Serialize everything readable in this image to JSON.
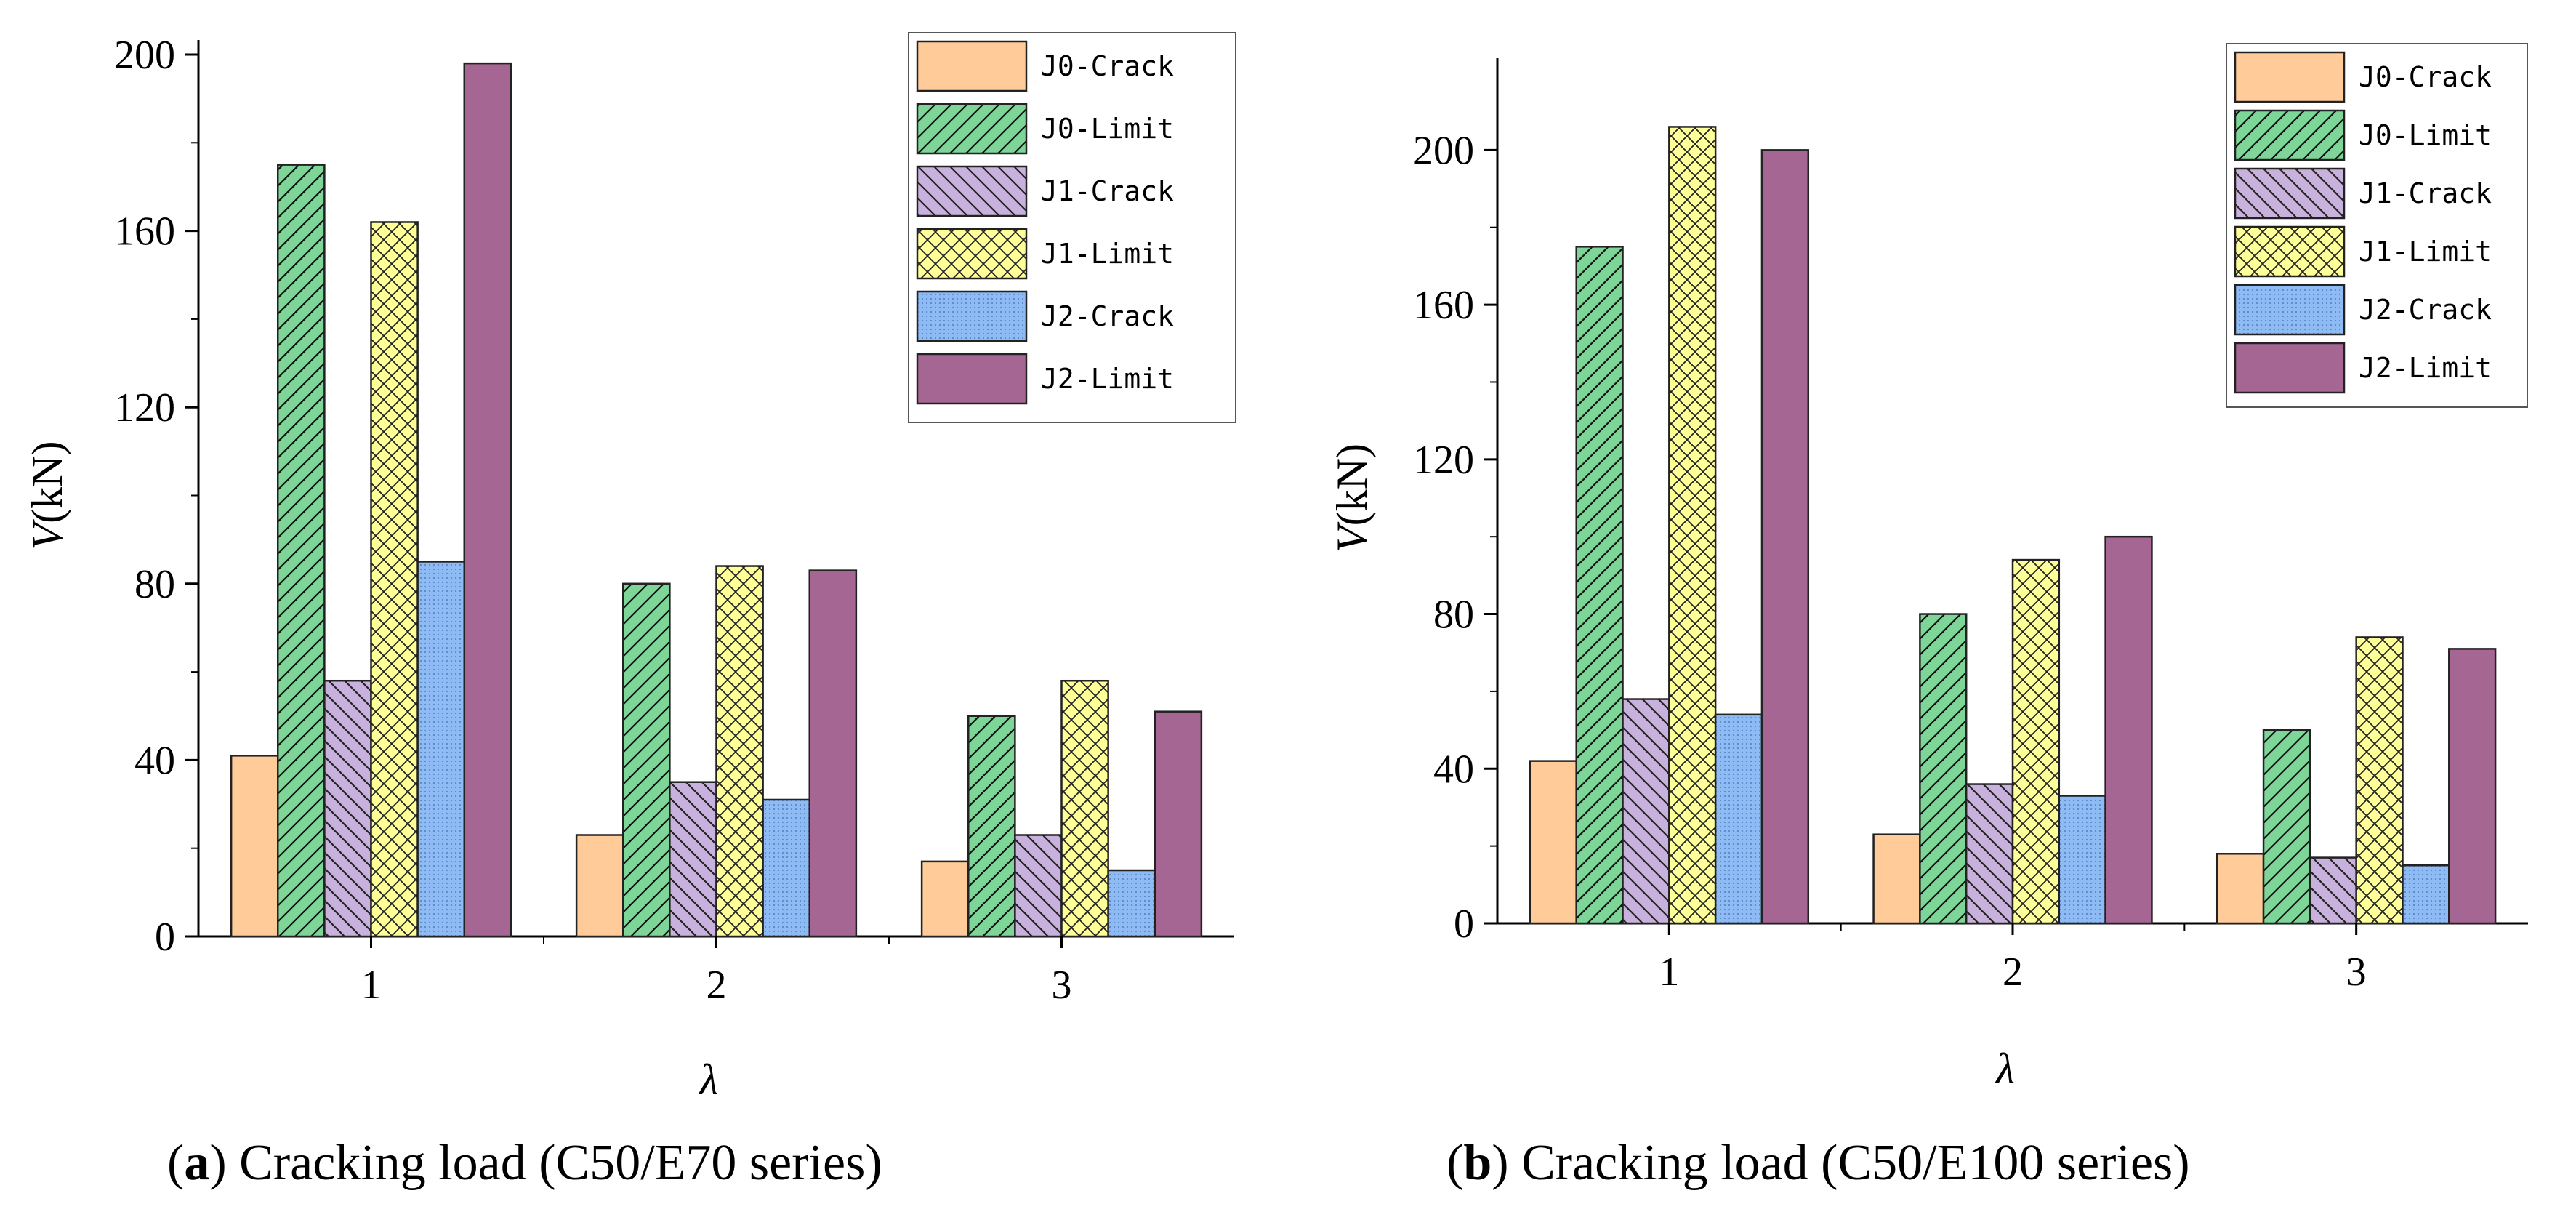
{
  "chart_data": [
    {
      "type": "bar",
      "panel": "a",
      "caption_label": "a",
      "caption_text": " Cracking load (C50/E70 series)",
      "xlabel": "λ",
      "ylabel_italic": "V",
      "ylabel_rest": "(kN)",
      "categories": [
        "1",
        "2",
        "3"
      ],
      "ylim": [
        0,
        200
      ],
      "yticks": [
        0,
        40,
        80,
        120,
        160,
        200
      ],
      "legend_position": "top-right",
      "series": [
        {
          "name": "J0-Crack",
          "values": [
            41,
            23,
            17
          ]
        },
        {
          "name": "J0-Limit",
          "values": [
            175,
            80,
            50
          ]
        },
        {
          "name": "J1-Crack",
          "values": [
            58,
            35,
            23
          ]
        },
        {
          "name": "J1-Limit",
          "values": [
            162,
            84,
            58
          ]
        },
        {
          "name": "J2-Crack",
          "values": [
            85,
            31,
            15
          ]
        },
        {
          "name": "J2-Limit",
          "values": [
            198,
            83,
            51
          ]
        }
      ]
    },
    {
      "type": "bar",
      "panel": "b",
      "caption_label": "b",
      "caption_text": " Cracking load (C50/E100 series)",
      "xlabel": "λ",
      "ylabel_italic": "V",
      "ylabel_rest": "(kN)",
      "categories": [
        "1",
        "2",
        "3"
      ],
      "ylim": [
        0,
        220
      ],
      "yticks": [
        0,
        40,
        80,
        120,
        160,
        200
      ],
      "legend_position": "top-right",
      "series": [
        {
          "name": "J0-Crack",
          "values": [
            42,
            23,
            18
          ]
        },
        {
          "name": "J0-Limit",
          "values": [
            175,
            80,
            50
          ]
        },
        {
          "name": "J1-Crack",
          "values": [
            58,
            36,
            17
          ]
        },
        {
          "name": "J1-Limit",
          "values": [
            206,
            94,
            74
          ]
        },
        {
          "name": "J2-Crack",
          "values": [
            54,
            33,
            15
          ]
        },
        {
          "name": "J2-Limit",
          "values": [
            200,
            100,
            71
          ]
        }
      ]
    }
  ],
  "series_colors": [
    "#FFCC99",
    "#7ED598",
    "#C9B1DE",
    "#FFFF99",
    "#8FBBF5",
    "#A66694"
  ],
  "series_patterns": [
    "solid",
    "diagonal-up",
    "diagonal-down",
    "crosshatch",
    "dots",
    "solid"
  ]
}
